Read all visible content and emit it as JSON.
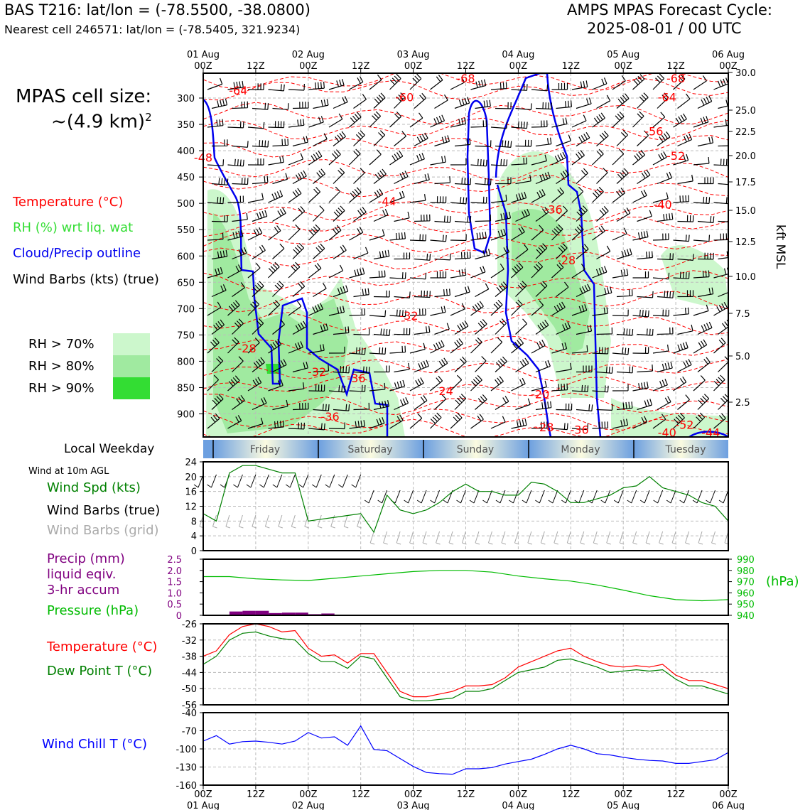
{
  "header": {
    "station": "BAS T216: lat/lon = (-78.5500, -38.0800)",
    "nearest": "Nearest cell 246571: lat/lon = (-78.5405, 321.9234)",
    "cycle_title": "AMPS MPAS Forecast Cycle:",
    "cycle_time": "2025-08-01 / 00 UTC"
  },
  "cell_size": {
    "line1": "MPAS cell size:",
    "line2": "~(4.9 km)",
    "exp": "2"
  },
  "legend": {
    "temperature": "Temperature (°C)",
    "rh": "RH (%) wrt liq. wat",
    "cloud": "Cloud/Precip outline",
    "barbs": "Wind Barbs (kts) (true)",
    "rh_levels": [
      "RH > 70%",
      "RH > 80%",
      "RH > 90%"
    ]
  },
  "colors": {
    "temperature": "#ff0000",
    "rh_text": "#33dd33",
    "cloud": "#0000ee",
    "rh70": "#ccf7cc",
    "rh80": "#a0eaa0",
    "rh90": "#33dd33",
    "wind_speed": "#008000",
    "grid_barb": "#aaaaaa",
    "precip": "#800080",
    "pressure": "#00bb00",
    "dewpoint": "#008000",
    "windchill": "#0000ff"
  },
  "time_axis": {
    "top_days": [
      "01 Aug",
      "02 Aug",
      "03 Aug",
      "04 Aug",
      "05 Aug",
      "06 Aug"
    ],
    "hour_labels": [
      "00Z",
      "12Z",
      "00Z",
      "12Z",
      "00Z",
      "12Z",
      "00Z",
      "12Z",
      "00Z",
      "12Z",
      "00Z"
    ],
    "bottom_days": [
      "01 Aug",
      "02 Aug",
      "03 Aug",
      "04 Aug",
      "05 Aug",
      "06 Aug"
    ]
  },
  "weekday": {
    "title": "Local Weekday",
    "days": [
      "Friday",
      "Saturday",
      "Sunday",
      "Monday",
      "Tuesday"
    ]
  },
  "chart_data": [
    {
      "type": "heatmap",
      "name": "cross-section",
      "x_hours": [
        0,
        120
      ],
      "ylabel_right": "kft MSL",
      "pressure_ticks": [
        300,
        350,
        400,
        450,
        500,
        550,
        600,
        650,
        700,
        750,
        800,
        850,
        900
      ],
      "height_ticks": [
        "30.0",
        "25.0",
        "22.5",
        "20.0",
        "17.5",
        "15.0",
        "12.5",
        "10.0",
        "7.5",
        "5.0",
        "2.5"
      ],
      "contour_labels": [
        {
          "text": "-64",
          "hour": 8,
          "p": 285
        },
        {
          "text": "-68",
          "hour": 60,
          "p": 262
        },
        {
          "text": "-68",
          "hour": 108,
          "p": 262
        },
        {
          "text": "-60",
          "hour": 46,
          "p": 298
        },
        {
          "text": "-64",
          "hour": 106,
          "p": 298
        },
        {
          "text": "-56",
          "hour": 103,
          "p": 363
        },
        {
          "text": "-52",
          "hour": 108,
          "p": 409
        },
        {
          "text": "-48",
          "hour": 0,
          "p": 413
        },
        {
          "text": "-44",
          "hour": 42,
          "p": 496
        },
        {
          "text": "-36",
          "hour": 80,
          "p": 511
        },
        {
          "text": "-40",
          "hour": 105,
          "p": 502
        },
        {
          "text": "-28",
          "hour": 83,
          "p": 608
        },
        {
          "text": "-32",
          "hour": 47,
          "p": 713
        },
        {
          "text": "-28",
          "hour": 10,
          "p": 775
        },
        {
          "text": "-32",
          "hour": 26,
          "p": 820
        },
        {
          "text": "-36",
          "hour": 35,
          "p": 832
        },
        {
          "text": "-24",
          "hour": 55,
          "p": 856
        },
        {
          "text": "-20",
          "hour": 77,
          "p": 862
        },
        {
          "text": "-36",
          "hour": 29,
          "p": 905
        },
        {
          "text": "-28",
          "hour": 78,
          "p": 925
        },
        {
          "text": "-36",
          "hour": 86,
          "p": 930
        },
        {
          "text": "-40",
          "hour": 106,
          "p": 935
        },
        {
          "text": "-52",
          "hour": 110,
          "p": 920
        },
        {
          "text": "-44",
          "hour": 116,
          "p": 935
        }
      ]
    },
    {
      "type": "line",
      "name": "wind-10m",
      "title": "Wind at 10m AGL",
      "series_label": "Wind Spd (kts)",
      "barbs_true_label": "Wind Barbs (true)",
      "barbs_grid_label": "Wind Barbs (grid)",
      "x": [
        0,
        3,
        6,
        9,
        12,
        15,
        18,
        21,
        24,
        27,
        30,
        33,
        36,
        39,
        42,
        45,
        48,
        51,
        54,
        57,
        60,
        63,
        66,
        69,
        72,
        75,
        78,
        81,
        84,
        87,
        90,
        93,
        96,
        99,
        102,
        105,
        108,
        111,
        114,
        117,
        120
      ],
      "values": [
        10,
        8,
        21,
        23,
        23,
        22,
        21,
        21,
        8,
        8.5,
        9,
        9.5,
        10,
        5,
        15,
        11,
        10,
        11,
        13,
        16,
        18,
        16,
        16,
        15,
        15,
        18.5,
        18,
        16,
        13,
        13,
        14,
        15,
        17,
        17.5,
        20,
        17,
        16,
        15,
        13,
        12,
        8
      ],
      "ylim": [
        0,
        24
      ],
      "yticks": [
        0,
        4,
        8,
        12,
        16,
        20,
        24
      ]
    },
    {
      "type": "bar",
      "name": "precip-pressure",
      "precip_label": [
        "Precip (mm)",
        "liquid eqiv.",
        "3-hr accum"
      ],
      "pressure_label": "Pressure (hPa)",
      "pressure_unit": "(hPa)",
      "precip_x": [
        7.5,
        10.5,
        13.5,
        16.5,
        19.5,
        22.5,
        25.5,
        28.5,
        31.5,
        34.5,
        37.5
      ],
      "precip_values": [
        0.17,
        0.2,
        0.2,
        0.1,
        0.12,
        0.12,
        0.05,
        0.08,
        0.02,
        0.02,
        0.01
      ],
      "precip_ylim": [
        0,
        2.5
      ],
      "precip_ticks": [
        "0",
        "0.5",
        "1.0",
        "1.5",
        "2.0",
        "2.5"
      ],
      "pressure_x": [
        0,
        6,
        12,
        18,
        24,
        30,
        36,
        42,
        48,
        54,
        60,
        66,
        72,
        78,
        84,
        90,
        96,
        102,
        108,
        114,
        120
      ],
      "pressure_values": [
        974.5,
        974.5,
        972.5,
        971.5,
        971,
        973,
        975,
        977,
        979,
        980,
        980,
        978.5,
        975,
        972.5,
        970.5,
        967,
        962.5,
        957.5,
        954,
        953,
        954
      ],
      "pressure_ylim": [
        940,
        990
      ],
      "pressure_ticks": [
        940,
        950,
        960,
        970,
        980,
        990
      ]
    },
    {
      "type": "line",
      "name": "temp-dewpoint",
      "series": [
        {
          "name": "Temperature (°C)",
          "values": [
            -38,
            -36,
            -30,
            -27,
            -26,
            -27,
            -29,
            -28.5,
            -35,
            -38,
            -37.5,
            -40.5,
            -37,
            -37,
            -44,
            -51,
            -53,
            -53,
            -52,
            -51,
            -49,
            -49,
            -48.5,
            -46,
            -42,
            -40,
            -38,
            -36,
            -35,
            -38,
            -40,
            -41.5,
            -42,
            -41.5,
            -42,
            -41,
            -45,
            -47,
            -47,
            -48.5,
            -50
          ]
        },
        {
          "name": "Dew Point T (°C)",
          "values": [
            -41,
            -38,
            -32,
            -29.5,
            -29,
            -30.5,
            -31.5,
            -32,
            -37,
            -40,
            -40,
            -42.5,
            -38,
            -39,
            -46,
            -53,
            -54.5,
            -54.5,
            -54,
            -53.5,
            -51,
            -51,
            -50,
            -47,
            -44,
            -43,
            -42,
            -39.5,
            -39,
            -40.5,
            -42,
            -44,
            -43.5,
            -43,
            -43.5,
            -43,
            -46.5,
            -49,
            -49,
            -50.5,
            -52
          ]
        }
      ],
      "x": [
        0,
        3,
        6,
        9,
        12,
        15,
        18,
        21,
        24,
        27,
        30,
        33,
        36,
        39,
        42,
        45,
        48,
        51,
        54,
        57,
        60,
        63,
        66,
        69,
        72,
        75,
        78,
        81,
        84,
        87,
        90,
        93,
        96,
        99,
        102,
        105,
        108,
        111,
        114,
        117,
        120
      ],
      "ylim": [
        -56,
        -26
      ],
      "yticks": [
        -56,
        -50,
        -44,
        -38,
        -32,
        -26
      ]
    },
    {
      "type": "line",
      "name": "wind-chill",
      "series": [
        {
          "name": "Wind Chill T (°C)",
          "values": [
            -87,
            -78,
            -92,
            -88,
            -87,
            -89,
            -92,
            -87,
            -73,
            -82,
            -80,
            -94,
            -62,
            -101,
            -103,
            -116,
            -129,
            -139,
            -141,
            -142,
            -133,
            -133,
            -131,
            -125,
            -121,
            -117,
            -109,
            -100,
            -94,
            -100,
            -108,
            -110,
            -114,
            -117,
            -119,
            -120,
            -124,
            -124,
            -121,
            -118,
            -106
          ]
        }
      ],
      "x": [
        0,
        3,
        6,
        9,
        12,
        15,
        18,
        21,
        24,
        27,
        30,
        33,
        36,
        39,
        42,
        45,
        48,
        51,
        54,
        57,
        60,
        63,
        66,
        69,
        72,
        75,
        78,
        81,
        84,
        87,
        90,
        93,
        96,
        99,
        102,
        105,
        108,
        111,
        114,
        117,
        120
      ],
      "ylim": [
        -160,
        -40
      ],
      "yticks": [
        -160,
        -130,
        -100,
        -70,
        -40
      ]
    }
  ]
}
